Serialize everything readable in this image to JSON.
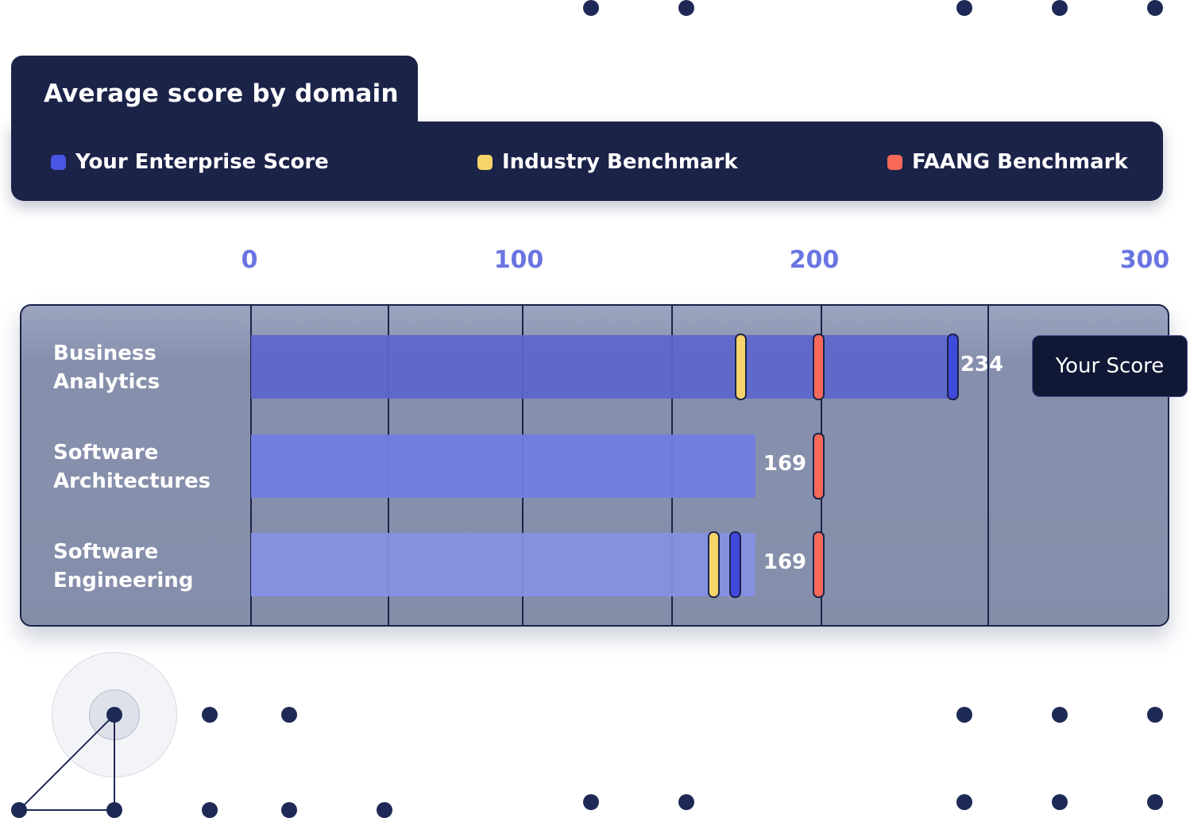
{
  "header": {
    "title": "Average score by domain"
  },
  "legend": [
    {
      "label": "Your Enterprise Score",
      "color": "#4a55e3"
    },
    {
      "label": "Industry Benchmark",
      "color": "#f5d46a"
    },
    {
      "label": "FAANG Benchmark",
      "color": "#f8695a"
    }
  ],
  "tooltip": {
    "label": "Your Score"
  },
  "chart_data": {
    "type": "bar",
    "orientation": "horizontal",
    "title": "Average score by domain",
    "xlim": [
      0,
      300
    ],
    "x_ticks": [
      "0",
      "100",
      "200",
      "300"
    ],
    "categories": [
      "Business Analytics",
      "Software Architectures",
      "Software Engineering"
    ],
    "category_lines": [
      [
        "Business",
        "Analytics"
      ],
      [
        "Software",
        "Architectures"
      ],
      [
        "Software",
        "Engineering"
      ]
    ],
    "series": [
      {
        "name": "Your Enterprise Score",
        "values": [
          234,
          169,
          169
        ],
        "value_labels": [
          "234",
          "169",
          "169"
        ]
      },
      {
        "name": "Industry Benchmark",
        "values": [
          164,
          null,
          155
        ]
      },
      {
        "name": "FAANG Benchmark",
        "values": [
          190,
          190,
          190
        ]
      }
    ],
    "your_score_markers": [
      235,
      null,
      162
    ],
    "bar_colors": [
      "#5c66cb",
      "#717de2",
      "#8590e3"
    ],
    "gridlines": true
  }
}
